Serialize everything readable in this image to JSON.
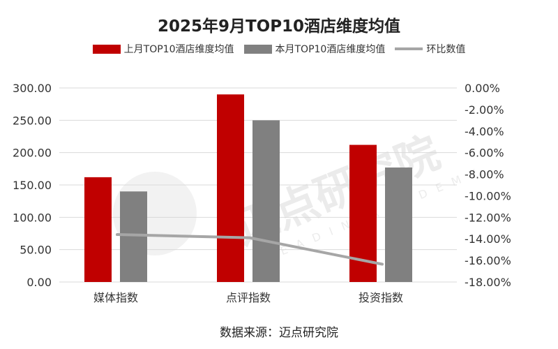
{
  "chart_data": {
    "type": "bar+line",
    "title": "2025年9月TOP10酒店维度均值",
    "categories": [
      "媒体指数",
      "点评指数",
      "投资指数"
    ],
    "series": [
      {
        "name": "上月TOP10酒店维度均值",
        "type": "bar",
        "axis": "left",
        "color": "#c00000",
        "values": [
          162,
          290,
          212
        ]
      },
      {
        "name": "本月TOP10酒店维度均值",
        "type": "bar",
        "axis": "left",
        "color": "#808080",
        "values": [
          140,
          250,
          177
        ]
      },
      {
        "name": "环比数值",
        "type": "line",
        "axis": "right",
        "color": "#a6a6a6",
        "values": [
          -13.6,
          -13.9,
          -16.35
        ]
      }
    ],
    "left_axis": {
      "ylim": [
        0,
        300
      ],
      "ticks": [
        "0.00",
        "50.00",
        "100.00",
        "150.00",
        "200.00",
        "250.00",
        "300.00"
      ]
    },
    "right_axis": {
      "ylim": [
        -18,
        0
      ],
      "ticks": [
        "0.00%",
        "-2.00%",
        "-4.00%",
        "-6.00%",
        "-8.00%",
        "-10.00%",
        "-12.00%",
        "-14.00%",
        "-16.00%",
        "-18.00%"
      ]
    },
    "grid": true,
    "legend_position": "top"
  },
  "source": "数据来源：迈点研究院",
  "watermark": "迈点研究院 MEADIN ACADEMY"
}
